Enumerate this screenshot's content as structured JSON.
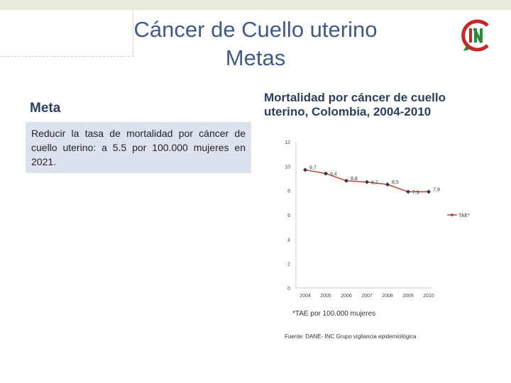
{
  "title": {
    "line1": "Cáncer de Cuello uterino",
    "line2": "Metas"
  },
  "logo": {
    "icon": "inc-logo-icon",
    "letters": "IN",
    "colors": {
      "red": "#c62828",
      "green": "#2e8b3c"
    }
  },
  "meta": {
    "label": "Meta",
    "text": "Reducir la tasa de mortalidad por cáncer de cuello uterino: a 5.5 por 100.000 mujeres en 2021."
  },
  "chart_title": "Mortalidad por cáncer de cuello uterino, Colombia, 2004-2010",
  "chart_data": {
    "type": "line",
    "categories": [
      "2004",
      "2005",
      "2006",
      "2007",
      "2008",
      "2009",
      "2010"
    ],
    "series": [
      {
        "name": "TAE*",
        "values": [
          9.7,
          9.4,
          8.8,
          8.7,
          8.5,
          7.9,
          7.9
        ],
        "color": "#c0392b"
      }
    ],
    "data_labels": [
      "9,7",
      "9,4",
      "8,8",
      "8,7",
      "8,5",
      "7,9",
      "7,9"
    ],
    "y_ticks": [
      "0",
      "2",
      "4",
      "6",
      "8",
      "10",
      "12"
    ],
    "ylim": [
      0,
      12
    ],
    "legend": "right",
    "title": "",
    "xlabel": "",
    "ylabel": ""
  },
  "footnote": "*TAE por 100.000 mujeres",
  "source": "Fuente: DANE- INC Grupo vigilancia epidemiológica"
}
